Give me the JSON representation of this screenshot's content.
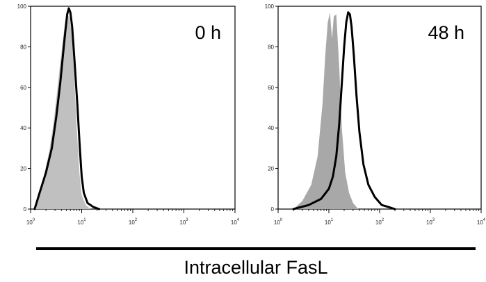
{
  "chart_data": [
    {
      "type": "histogram",
      "title": "0 h",
      "xscale": "log",
      "xlim": [
        1,
        10000
      ],
      "ylim": [
        0,
        100
      ],
      "xticks": [
        1,
        10,
        100,
        1000,
        10000
      ],
      "xtick_labels": [
        "10^0",
        "10^1",
        "10^2",
        "10^3",
        "10^4"
      ],
      "yticks": [
        0,
        20,
        40,
        60,
        80,
        100
      ],
      "ytick_labels": [
        "0",
        "20",
        "40",
        "60",
        "80",
        "100"
      ],
      "series": [
        {
          "style": "gray-filled",
          "color": "#c0c0c0",
          "x": [
            1.2,
            1.4,
            1.8,
            2.3,
            2.8,
            3.3,
            3.8,
            4.3,
            4.8,
            5.3,
            5.8,
            6.3,
            7.0,
            8.0,
            9.0,
            10.0,
            12.0,
            15.0
          ],
          "y": [
            0,
            6,
            16,
            28,
            42,
            58,
            72,
            84,
            93,
            96,
            94,
            88,
            70,
            40,
            18,
            7,
            2,
            0
          ]
        },
        {
          "style": "black-outline",
          "color": "#000000",
          "x": [
            1.2,
            1.5,
            2.0,
            2.6,
            3.2,
            3.8,
            4.3,
            4.8,
            5.2,
            5.6,
            6.0,
            6.5,
            7.2,
            8.2,
            9.2,
            10.0,
            11.0,
            13.0,
            17.0,
            22.0
          ],
          "y": [
            0,
            8,
            18,
            30,
            46,
            62,
            76,
            88,
            96,
            99,
            97,
            90,
            74,
            52,
            30,
            16,
            8,
            3,
            1,
            0
          ]
        }
      ]
    },
    {
      "type": "histogram",
      "title": "48 h",
      "xscale": "log",
      "xlim": [
        1,
        10000
      ],
      "ylim": [
        0,
        100
      ],
      "xticks": [
        1,
        10,
        100,
        1000,
        10000
      ],
      "xtick_labels": [
        "10^0",
        "10^1",
        "10^2",
        "10^3",
        "10^4"
      ],
      "yticks": [
        0,
        20,
        40,
        60,
        80,
        100
      ],
      "ytick_labels": [
        "0",
        "20",
        "40",
        "60",
        "80",
        "100"
      ],
      "series": [
        {
          "style": "gray-filled",
          "color": "#a8a8a8",
          "x": [
            2.0,
            3.0,
            4.5,
            6.0,
            7.5,
            8.5,
            9.5,
            10.5,
            11.5,
            12.5,
            14.0,
            16.0,
            18.0,
            21.0,
            25.0,
            30.0,
            38.0
          ],
          "y": [
            0,
            4,
            12,
            26,
            52,
            76,
            92,
            97,
            84,
            95,
            96,
            70,
            40,
            18,
            8,
            3,
            0
          ]
        },
        {
          "style": "black-outline",
          "color": "#000000",
          "x": [
            2.0,
            4.0,
            7.0,
            10.0,
            12.0,
            14.0,
            16.0,
            18.0,
            20.0,
            22.0,
            24.0,
            26.0,
            28.0,
            31.0,
            35.0,
            40.0,
            48.0,
            60.0,
            80.0,
            110.0,
            150.0,
            200.0
          ],
          "y": [
            0,
            2,
            5,
            10,
            16,
            26,
            42,
            62,
            80,
            92,
            97,
            96,
            90,
            76,
            56,
            38,
            22,
            12,
            6,
            2,
            1,
            0
          ]
        }
      ]
    }
  ],
  "x_axis_title": "Intracellular FasL"
}
